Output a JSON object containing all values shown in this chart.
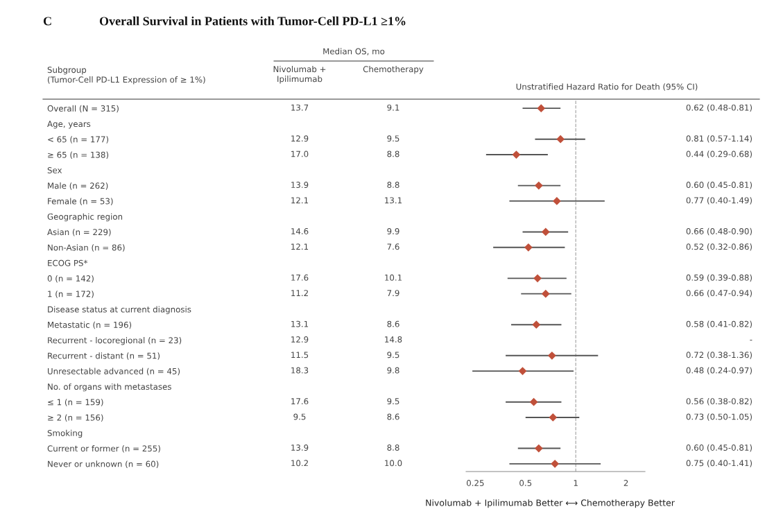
{
  "chart_data": [
    {
      "type": "other",
      "title": "Overall Survival in Patients with Tumor-Cell PD-L1 ≥1%",
      "ylabel": "Subgroup\n(Tumor-Cell PD-L1 Expression of ≥ 1%)",
      "annotations": [
        "C",
        "Median OS, mo"
      ],
      "categories": [
        "Overall (N = 315)",
        "Age, years",
        "< 65 (n = 177)",
        "≥ 65 (n = 138)",
        "Sex",
        "Male (n = 262)",
        "Female (n = 53)",
        "Geographic region",
        "Asian (n = 229)",
        "Non-Asian (n = 86)",
        "ECOG PS*",
        "0 (n = 142)",
        "1 (n = 172)",
        "Disease status at current diagnosis",
        "Metastatic (n = 196)",
        "Recurrent - locoregional (n = 23)",
        "Recurrent - distant (n = 51)",
        "Unresectable advanced (n = 45)",
        "No. of organs with metastases",
        "≤ 1 (n = 159)",
        "≥ 2 (n = 156)",
        "Smoking",
        "Current or former (n = 255)",
        "Never or unknown (n = 60)"
      ],
      "series": [
        {
          "name": "Nivolumab + Ipilimumab",
          "values": [
            13.7,
            null,
            12.9,
            17.0,
            null,
            13.9,
            12.1,
            null,
            14.6,
            12.1,
            null,
            17.6,
            11.2,
            null,
            13.1,
            12.9,
            11.5,
            18.3,
            null,
            17.6,
            9.5,
            null,
            13.9,
            10.2
          ],
          "value_labels": [
            "13.7",
            null,
            "12.9",
            "17.0",
            null,
            "13.9",
            "12.1",
            null,
            "14.6",
            "12.1",
            null,
            "17.6",
            "11.2",
            null,
            "13.1",
            "12.9",
            "11.5",
            "18.3",
            null,
            "17.6",
            "9.5",
            null,
            "13.9",
            "10.2"
          ]
        },
        {
          "name": "Chemotherapy",
          "values": [
            9.1,
            null,
            9.5,
            8.8,
            null,
            8.8,
            13.1,
            null,
            9.9,
            7.6,
            null,
            10.1,
            7.9,
            null,
            8.6,
            14.8,
            9.5,
            9.8,
            null,
            9.5,
            8.6,
            null,
            8.8,
            10.0
          ],
          "value_labels": [
            "9.1",
            null,
            "9.5",
            "8.8",
            null,
            "8.8",
            "13.1",
            null,
            "9.9",
            "7.6",
            null,
            "10.1",
            "7.9",
            null,
            "8.6",
            "14.8",
            "9.5",
            "9.8",
            null,
            "9.5",
            "8.6",
            null,
            "8.8",
            "10.0"
          ]
        }
      ]
    },
    {
      "type": "scatter",
      "xlabel": "Nivolumab + Ipilimumab Better ⟷ Chemotherapy Better",
      "annotations": [
        "Unstratified Hazard Ratio for Death (95% CI)"
      ],
      "categories": [
        null,
        null,
        null,
        null,
        null,
        null,
        null,
        null,
        null,
        null,
        null,
        null,
        null,
        null,
        null,
        null,
        null,
        null,
        null,
        null,
        null,
        null,
        null,
        null
      ],
      "tick_labels": "x",
      "series": [
        {
          "type": "scatter",
          "color": "#c0503a",
          "marker": "diamond",
          "values": [
            0.62,
            null,
            0.81,
            0.44,
            null,
            0.6,
            0.77,
            null,
            0.66,
            0.52,
            null,
            0.59,
            0.66,
            null,
            0.58,
            null,
            0.72,
            0.48,
            null,
            0.56,
            0.73,
            null,
            0.6,
            0.75
          ],
          "errors": [
            [
              0.48,
              0.81
            ],
            null,
            [
              0.57,
              1.14
            ],
            [
              0.29,
              0.68
            ],
            null,
            [
              0.45,
              0.81
            ],
            [
              0.4,
              1.49
            ],
            null,
            [
              0.48,
              0.9
            ],
            [
              0.32,
              0.86
            ],
            null,
            [
              0.39,
              0.88
            ],
            [
              0.47,
              0.94
            ],
            null,
            [
              0.41,
              0.82
            ],
            null,
            [
              0.38,
              1.36
            ],
            [
              0.24,
              0.97
            ],
            null,
            [
              0.38,
              0.82
            ],
            [
              0.5,
              1.05
            ],
            null,
            [
              0.45,
              0.81
            ],
            [
              0.4,
              1.41
            ]
          ],
          "value_labels": [
            "0.62 (0.48-0.81)",
            null,
            "0.81 (0.57-1.14)",
            "0.44 (0.29-0.68)",
            null,
            "0.60 (0.45-0.81)",
            "0.77 (0.40-1.49)",
            null,
            "0.66 (0.48-0.90)",
            "0.52 (0.32-0.86)",
            null,
            "0.59 (0.39-0.88)",
            "0.66 (0.47-0.94)",
            null,
            "0.58 (0.41-0.82)",
            "-",
            "0.72 (0.38-1.36)",
            "0.48 (0.24-0.97)",
            null,
            "0.56 (0.38-0.82)",
            "0.73 (0.50-1.05)",
            null,
            "0.60 (0.45-0.81)",
            "0.75 (0.40-1.41)"
          ]
        }
      ],
      "orientation": "horizontal",
      "log": "x",
      "xlim": [
        0.22,
        2.6
      ],
      "xticks": [
        0.25,
        0.5,
        1,
        2
      ],
      "ref_lines": [
        {
          "axis": "x",
          "value": 1,
          "color": "#aaaaaa",
          "line_style": "dashed"
        }
      ],
      "grid": false,
      "legend": false
    }
  ]
}
